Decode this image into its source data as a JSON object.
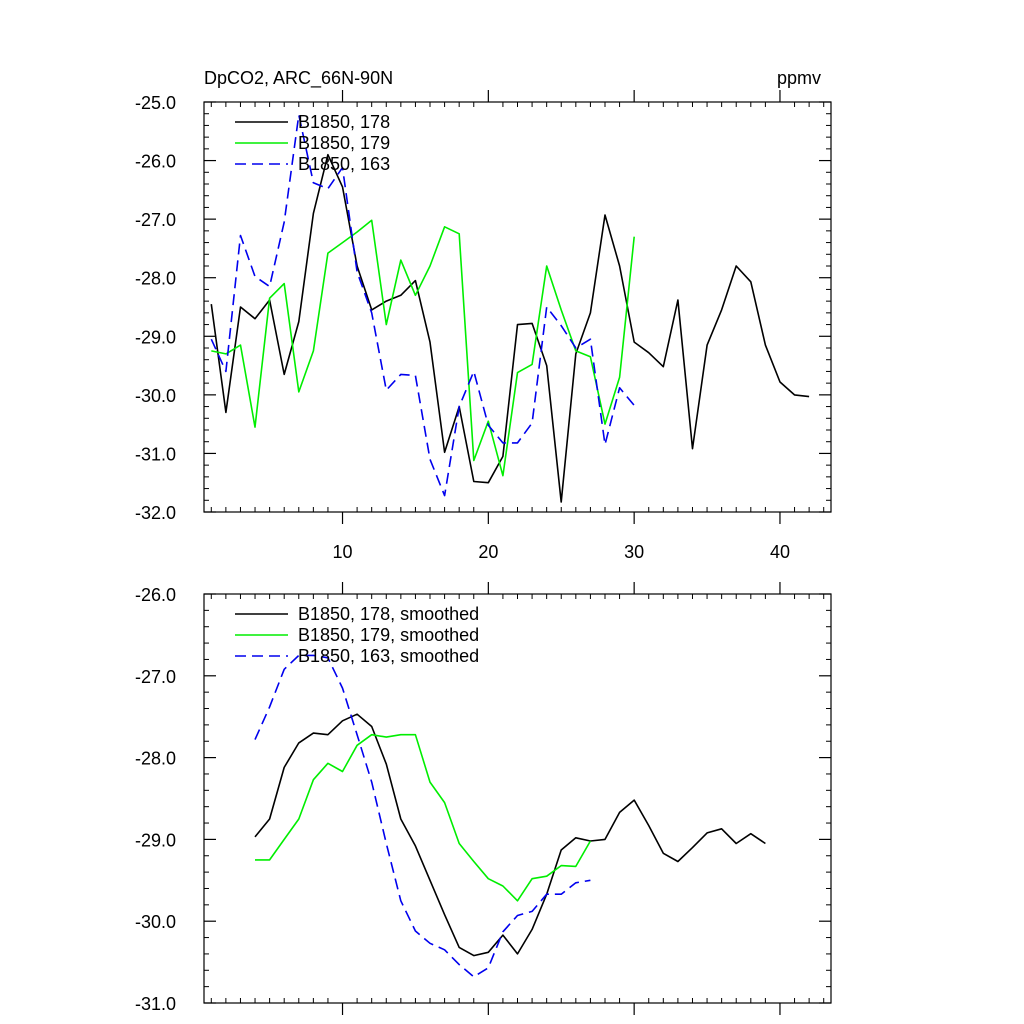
{
  "chart_data": [
    {
      "type": "line",
      "title_left": "DpCO2, ARC_66N-90N",
      "title_right": "ppmv",
      "xlim": [
        0.5,
        43.5
      ],
      "ylim": [
        -32.0,
        -25.0
      ],
      "xticks": [
        10,
        20,
        30,
        40
      ],
      "xtick_labels": [
        "10",
        "20",
        "30",
        "40"
      ],
      "yticks": [
        -32,
        -31,
        -30,
        -29,
        -28,
        -27,
        -26,
        -25
      ],
      "ytick_labels": [
        "-32.0",
        "-31.0",
        "-30.0",
        "-29.0",
        "-28.0",
        "-27.0",
        "-26.0",
        "-25.0"
      ],
      "legend_position": "top-left",
      "series": [
        {
          "name": "B1850, 178",
          "color": "#000000",
          "dash": "solid",
          "x": [
            1,
            2,
            3,
            4,
            5,
            6,
            7,
            8,
            9,
            10,
            11,
            12,
            13,
            14,
            15,
            16,
            17,
            18,
            19,
            20,
            21,
            22,
            23,
            24,
            25,
            26,
            27,
            28,
            29,
            30,
            31,
            32,
            33,
            34,
            35,
            36,
            37,
            38,
            39,
            40,
            41,
            42
          ],
          "y": [
            -28.45,
            -30.3,
            -28.5,
            -28.7,
            -28.38,
            -29.65,
            -28.75,
            -26.9,
            -25.9,
            -26.45,
            -27.8,
            -28.55,
            -28.4,
            -28.3,
            -28.05,
            -29.1,
            -30.98,
            -30.2,
            -31.48,
            -31.5,
            -31.05,
            -28.8,
            -28.78,
            -29.5,
            -31.83,
            -29.3,
            -28.6,
            -26.93,
            -27.8,
            -29.1,
            -29.28,
            -29.52,
            -28.38,
            -30.92,
            -29.15,
            -28.55,
            -27.8,
            -28.07,
            -29.15,
            -29.78,
            -30.0,
            -30.03
          ]
        },
        {
          "name": "B1850, 179",
          "color": "#00ee00",
          "dash": "solid",
          "x": [
            1,
            2,
            3,
            4,
            5,
            6,
            7,
            8,
            9,
            10,
            11,
            12,
            13,
            14,
            15,
            16,
            17,
            18,
            19,
            20,
            21,
            22,
            23,
            24,
            25,
            26,
            27,
            28,
            29,
            30
          ],
          "y": [
            -29.25,
            -29.3,
            -29.15,
            -30.55,
            -28.35,
            -28.1,
            -29.95,
            -29.25,
            -27.58,
            -27.4,
            -27.22,
            -27.02,
            -28.8,
            -27.7,
            -28.3,
            -27.8,
            -27.13,
            -27.25,
            -31.12,
            -30.45,
            -31.38,
            -29.62,
            -29.48,
            -27.8,
            -28.55,
            -29.25,
            -29.35,
            -30.5,
            -29.7,
            -27.3
          ]
        },
        {
          "name": "B1850, 163",
          "color": "#0000ee",
          "dash": "dashed",
          "x": [
            1,
            2,
            3,
            4,
            5,
            6,
            7,
            8,
            9,
            10,
            11,
            12,
            13,
            14,
            15,
            16,
            17,
            18,
            19,
            20,
            21,
            22,
            23,
            24,
            25,
            26,
            27,
            28,
            29,
            30
          ],
          "y": [
            -29.05,
            -29.6,
            -27.28,
            -27.98,
            -28.15,
            -27.05,
            -25.22,
            -26.38,
            -26.48,
            -26.12,
            -27.9,
            -28.6,
            -29.92,
            -29.65,
            -29.67,
            -31.1,
            -31.72,
            -30.2,
            -29.6,
            -30.52,
            -30.82,
            -30.82,
            -30.48,
            -28.5,
            -28.82,
            -29.2,
            -29.05,
            -30.85,
            -29.88,
            -30.18
          ]
        }
      ]
    },
    {
      "type": "line",
      "xlim": [
        0.5,
        43.5
      ],
      "ylim": [
        -31.0,
        -26.0
      ],
      "xticks": [
        10,
        20,
        30,
        40
      ],
      "yticks": [
        -31,
        -30,
        -29,
        -28,
        -27,
        -26
      ],
      "ytick_labels": [
        "-31.0",
        "-30.0",
        "-29.0",
        "-28.0",
        "-27.0",
        "-26.0"
      ],
      "legend_position": "top-left",
      "series": [
        {
          "name": "B1850, 178, smoothed",
          "color": "#000000",
          "dash": "solid",
          "x": [
            4,
            5,
            6,
            7,
            8,
            9,
            10,
            11,
            12,
            13,
            14,
            15,
            16,
            17,
            18,
            19,
            20,
            21,
            22,
            23,
            24,
            25,
            26,
            27,
            28,
            29,
            30,
            31,
            32,
            33,
            34,
            35,
            36,
            37,
            38,
            39
          ],
          "y": [
            -28.97,
            -28.75,
            -28.12,
            -27.82,
            -27.7,
            -27.72,
            -27.55,
            -27.47,
            -27.62,
            -28.08,
            -28.75,
            -29.08,
            -29.5,
            -29.92,
            -30.32,
            -30.42,
            -30.38,
            -30.17,
            -30.4,
            -30.1,
            -29.67,
            -29.13,
            -28.98,
            -29.02,
            -29.0,
            -28.67,
            -28.52,
            -28.83,
            -29.17,
            -29.27,
            -29.1,
            -28.92,
            -28.87,
            -29.05,
            -28.93,
            -29.05
          ]
        },
        {
          "name": "B1850, 179, smoothed",
          "color": "#00ee00",
          "dash": "solid",
          "x": [
            4,
            5,
            6,
            7,
            8,
            9,
            10,
            11,
            12,
            13,
            14,
            15,
            16,
            17,
            18,
            19,
            20,
            21,
            22,
            23,
            24,
            25,
            26,
            27
          ],
          "y": [
            -29.25,
            -29.25,
            -29.0,
            -28.75,
            -28.27,
            -28.07,
            -28.17,
            -27.85,
            -27.72,
            -27.75,
            -27.72,
            -27.72,
            -28.3,
            -28.55,
            -29.05,
            -29.27,
            -29.48,
            -29.57,
            -29.75,
            -29.48,
            -29.45,
            -29.32,
            -29.33,
            -29.02
          ]
        },
        {
          "name": "B1850, 163, smoothed",
          "color": "#0000ee",
          "dash": "dashed",
          "x": [
            4,
            5,
            6,
            7,
            8,
            9,
            10,
            11,
            12,
            13,
            14,
            15,
            16,
            17,
            18,
            19,
            20,
            21,
            22,
            23,
            24,
            25,
            26,
            27
          ],
          "y": [
            -27.78,
            -27.38,
            -26.92,
            -26.75,
            -26.75,
            -26.78,
            -27.15,
            -27.72,
            -28.3,
            -29.05,
            -29.75,
            -30.12,
            -30.27,
            -30.35,
            -30.53,
            -30.68,
            -30.57,
            -30.13,
            -29.93,
            -29.88,
            -29.67,
            -29.67,
            -29.53,
            -29.5
          ]
        }
      ]
    }
  ]
}
